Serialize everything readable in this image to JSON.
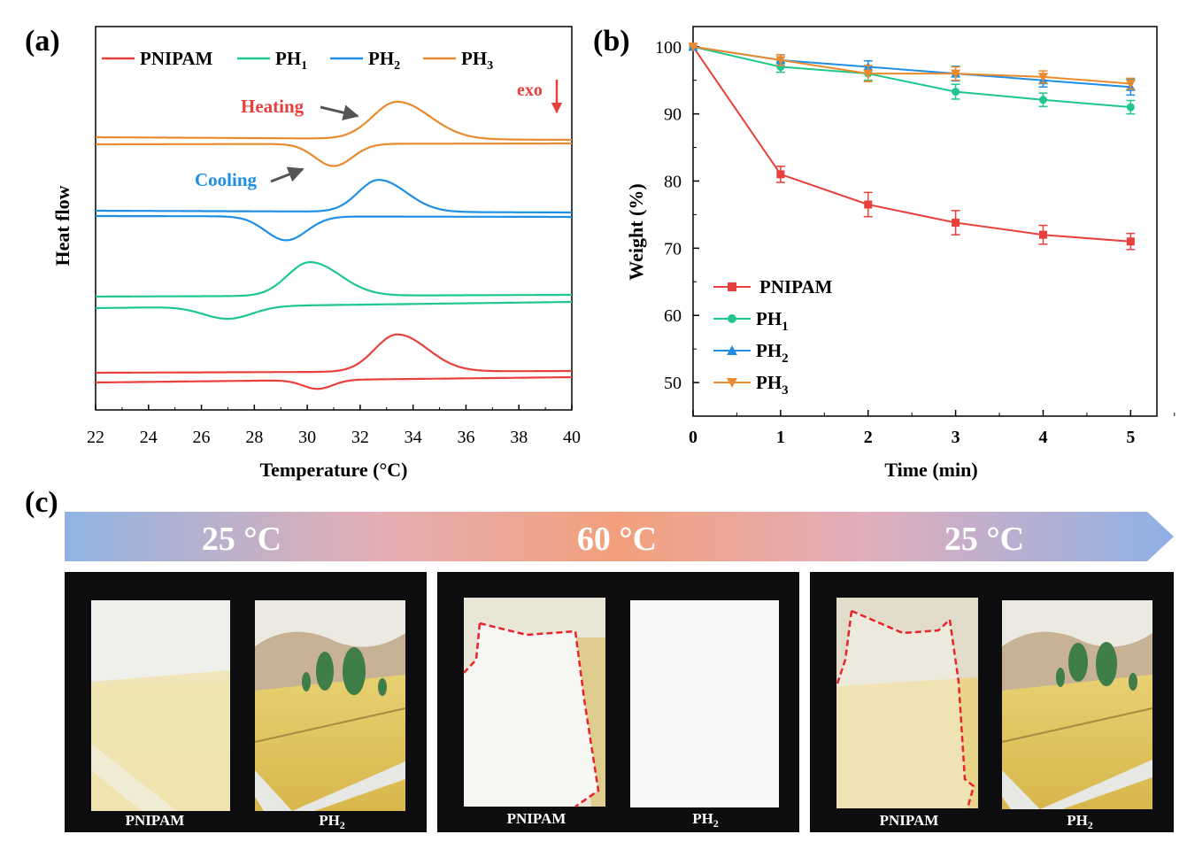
{
  "panel_labels": {
    "a": "(a)",
    "b": "(b)",
    "c": "(c)"
  },
  "colors": {
    "PNIPAM": "#e8403c",
    "PH1": "#1fc88a",
    "PH2": "#1f8fe6",
    "PH3": "#e98a2e"
  },
  "chart_data": [
    {
      "type": "line",
      "panel": "(a)",
      "xlabel": "Temperature (°C)",
      "ylabel": "Heat flow",
      "xlim": [
        22,
        40
      ],
      "xticks": [
        "22",
        "24",
        "26",
        "28",
        "30",
        "32",
        "34",
        "36",
        "38",
        "40"
      ],
      "legend": {
        "placement": "top",
        "entries": [
          {
            "name": "PNIPAM",
            "sub": ""
          },
          {
            "name": "PH",
            "sub": "1"
          },
          {
            "name": "PH",
            "sub": "2"
          },
          {
            "name": "PH",
            "sub": "3"
          }
        ]
      },
      "annotations": {
        "heating": "Heating",
        "cooling": "Cooling",
        "exo": "exo"
      },
      "series": [
        {
          "name": "PNIPAM",
          "heating_peak_x": 33.4,
          "cooling_dip_x": 30.4
        },
        {
          "name": "PH1",
          "heating_peak_x": 30.1,
          "cooling_dip_x": 27.0
        },
        {
          "name": "PH2",
          "heating_peak_x": 32.7,
          "cooling_dip_x": 29.2
        },
        {
          "name": "PH3",
          "heating_peak_x": 33.4,
          "cooling_dip_x": 31.0
        }
      ]
    },
    {
      "type": "line",
      "panel": "(b)",
      "xlabel": "Time (min)",
      "ylabel": "Weight (%)",
      "xlim": [
        0,
        5.3
      ],
      "ylim": [
        45,
        103
      ],
      "xticks": [
        "0",
        "1",
        "2",
        "3",
        "4",
        "5"
      ],
      "yticks": [
        "50",
        "60",
        "70",
        "80",
        "90",
        "100"
      ],
      "x": [
        0,
        1,
        2,
        3,
        4,
        5
      ],
      "legend": {
        "placement": "bottom-left",
        "entries": [
          {
            "name": "PNIPAM",
            "sub": ""
          },
          {
            "name": "PH",
            "sub": "1"
          },
          {
            "name": "PH",
            "sub": "2"
          },
          {
            "name": "PH",
            "sub": "3"
          }
        ]
      },
      "series": [
        {
          "name": "PNIPAM",
          "marker": "square",
          "values": [
            100,
            81,
            76.5,
            73.8,
            72,
            71
          ],
          "errors": [
            0,
            1.2,
            1.8,
            1.8,
            1.4,
            1.2
          ]
        },
        {
          "name": "PH1",
          "marker": "circle",
          "values": [
            100,
            97,
            96,
            93.3,
            92.1,
            91
          ],
          "errors": [
            0,
            0.8,
            1.0,
            1.1,
            1.0,
            1.0
          ]
        },
        {
          "name": "PH2",
          "marker": "triangle-up",
          "values": [
            100,
            98,
            97,
            96,
            95,
            94
          ],
          "errors": [
            0,
            0.8,
            0.9,
            1.1,
            1.0,
            1.2
          ]
        },
        {
          "name": "PH3",
          "marker": "triangle-down",
          "values": [
            100,
            98,
            96,
            96,
            95.5,
            94.5
          ],
          "errors": [
            0,
            0.8,
            1.2,
            1.0,
            0.9,
            0.8
          ]
        }
      ]
    }
  ],
  "panel_c": {
    "temperatures": [
      "25 °C",
      "60 °C",
      "25 °C"
    ],
    "sample_left": {
      "name": "PNIPAM",
      "sub": ""
    },
    "sample_right": {
      "name": "PH",
      "sub": "2"
    }
  }
}
